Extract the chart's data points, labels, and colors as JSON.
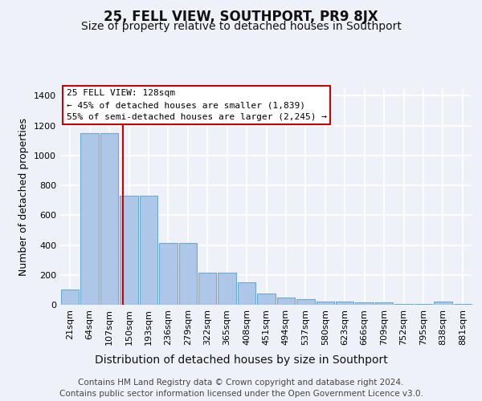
{
  "title": "25, FELL VIEW, SOUTHPORT, PR9 8JX",
  "subtitle": "Size of property relative to detached houses in Southport",
  "xlabel": "Distribution of detached houses by size in Southport",
  "ylabel": "Number of detached properties",
  "categories": [
    "21sqm",
    "64sqm",
    "107sqm",
    "150sqm",
    "193sqm",
    "236sqm",
    "279sqm",
    "322sqm",
    "365sqm",
    "408sqm",
    "451sqm",
    "494sqm",
    "537sqm",
    "580sqm",
    "623sqm",
    "666sqm",
    "709sqm",
    "752sqm",
    "795sqm",
    "838sqm",
    "881sqm"
  ],
  "values": [
    100,
    1150,
    1150,
    730,
    730,
    415,
    415,
    215,
    215,
    150,
    75,
    50,
    35,
    20,
    20,
    15,
    15,
    5,
    5,
    20,
    5
  ],
  "bar_color": "#aec6e8",
  "bar_edge_color": "#6aaad4",
  "red_line_x": 2.7,
  "annotation_text": "25 FELL VIEW: 128sqm\n← 45% of detached houses are smaller (1,839)\n55% of semi-detached houses are larger (2,245) →",
  "annotation_box_color": "#ffffff",
  "annotation_border_color": "#cc0000",
  "ylim": [
    0,
    1450
  ],
  "yticks": [
    0,
    200,
    400,
    600,
    800,
    1000,
    1200,
    1400
  ],
  "footer": "Contains HM Land Registry data © Crown copyright and database right 2024.\nContains public sector information licensed under the Open Government Licence v3.0.",
  "background_color": "#eef2f8",
  "plot_bg_color": "#eef2f8",
  "grid_color": "#ffffff",
  "title_fontsize": 12,
  "subtitle_fontsize": 10,
  "ylabel_fontsize": 9,
  "xlabel_fontsize": 10,
  "footer_fontsize": 7.5,
  "tick_fontsize": 8
}
